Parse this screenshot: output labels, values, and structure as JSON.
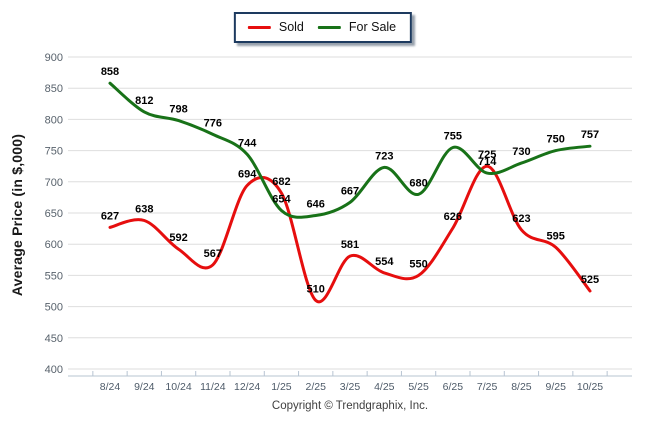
{
  "legend": {
    "items": [
      {
        "label": "Sold",
        "color": "#e60e0e"
      },
      {
        "label": "For Sale",
        "color": "#187218"
      }
    ]
  },
  "footer": "Copyright © Trendgraphix, Inc.",
  "chart_data": {
    "type": "line",
    "title": "",
    "xlabel": "",
    "ylabel": "Average Price (in $,000)",
    "categories": [
      "8/24",
      "9/24",
      "10/24",
      "11/24",
      "12/24",
      "1/25",
      "2/25",
      "3/25",
      "4/25",
      "5/25",
      "6/25",
      "7/25",
      "8/25",
      "9/25",
      "10/25"
    ],
    "series": [
      {
        "name": "Sold",
        "color": "#e60e0e",
        "values": [
          627,
          638,
          592,
          567,
          694,
          682,
          510,
          581,
          554,
          550,
          626,
          725,
          623,
          595,
          525
        ]
      },
      {
        "name": "For Sale",
        "color": "#187218",
        "values": [
          858,
          812,
          798,
          776,
          744,
          654,
          646,
          667,
          723,
          680,
          755,
          714,
          730,
          750,
          757
        ]
      }
    ],
    "ylim": [
      400,
      900
    ],
    "yticks": [
      400,
      450,
      500,
      550,
      600,
      650,
      700,
      750,
      800,
      850,
      900
    ],
    "grid": true,
    "legend_position": "top-center",
    "grid_color": "#dedede",
    "axis_color": "#b7c4d2",
    "tick_label_color": "#4d5a68",
    "data_label_color": "#000000"
  }
}
